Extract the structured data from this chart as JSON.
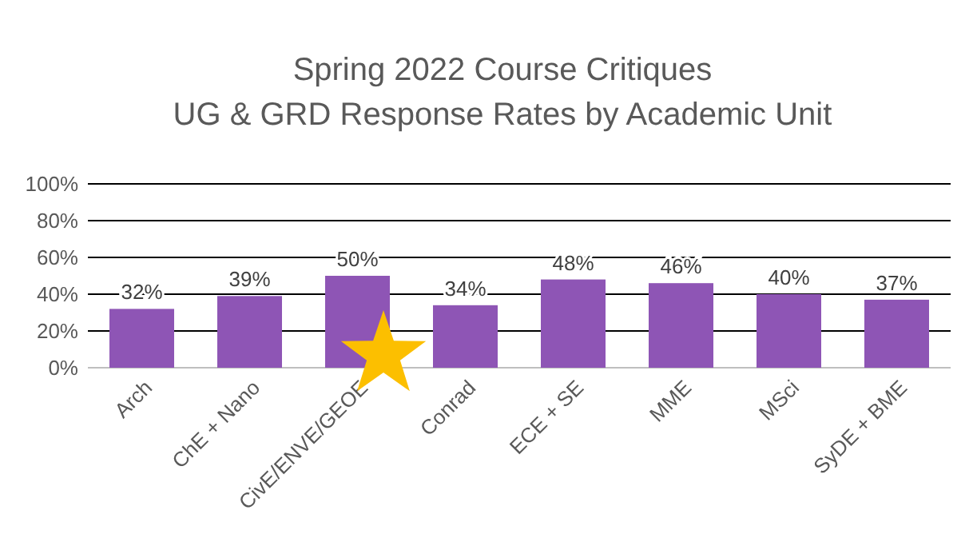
{
  "chart_data": {
    "type": "bar",
    "title": "Spring 2022 Course Critiques",
    "subtitle": "UG & GRD Response Rates by Academic Unit",
    "categories": [
      "Arch",
      "ChE + Nano",
      "CivE/ENVE/GEOE",
      "Conrad",
      "ECE + SE",
      "MME",
      "MSci",
      "SyDE + BME"
    ],
    "values": [
      32,
      39,
      50,
      34,
      48,
      46,
      40,
      37
    ],
    "value_labels": [
      "32%",
      "39%",
      "50%",
      "34%",
      "48%",
      "46%",
      "40%",
      "37%"
    ],
    "color": "#8e55b5",
    "ylim": [
      0,
      100
    ],
    "yticks": [
      {
        "value": 0,
        "label": "0%"
      },
      {
        "value": 20,
        "label": "20%"
      },
      {
        "value": 40,
        "label": "40%"
      },
      {
        "value": 60,
        "label": "60%"
      },
      {
        "value": 80,
        "label": "80%"
      },
      {
        "value": 100,
        "label": "100%"
      }
    ],
    "grid": "y"
  }
}
